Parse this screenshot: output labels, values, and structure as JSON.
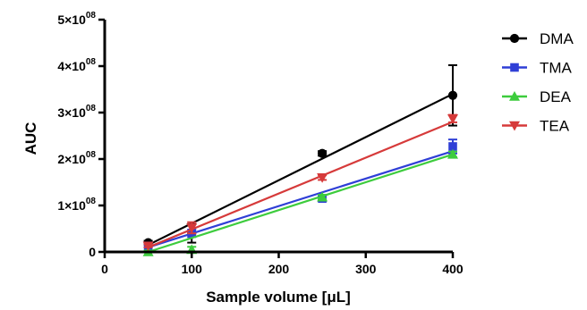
{
  "chart_data": {
    "type": "scatter",
    "title": "",
    "xlabel": "Sample volume [μL]",
    "ylabel": "AUC",
    "xlim": [
      0,
      400
    ],
    "ylim": [
      0,
      500000000
    ],
    "x_ticks": [
      0,
      100,
      200,
      300,
      400
    ],
    "x_tick_labels": [
      "0",
      "100",
      "200",
      "300",
      "400"
    ],
    "y_ticks": [
      0,
      100000000,
      200000000,
      300000000,
      400000000,
      500000000
    ],
    "y_tick_labels": [
      {
        "mantissa": "0",
        "exp": ""
      },
      {
        "mantissa": "1×10",
        "exp": "08"
      },
      {
        "mantissa": "2×10",
        "exp": "08"
      },
      {
        "mantissa": "3×10",
        "exp": "08"
      },
      {
        "mantissa": "4×10",
        "exp": "08"
      },
      {
        "mantissa": "5×10",
        "exp": "08"
      }
    ],
    "grid": false,
    "legend_position": "right",
    "series": [
      {
        "name": "DMA",
        "color": "#000000",
        "marker": "circle",
        "points": [
          {
            "x": 50,
            "y": 20000000,
            "err": 4000000
          },
          {
            "x": 100,
            "y": 40000000,
            "err": 20000000
          },
          {
            "x": 250,
            "y": 212000000,
            "err": 5000000
          },
          {
            "x": 400,
            "y": 337000000,
            "err": 65000000
          }
        ],
        "fit": [
          [
            50,
            15000000
          ],
          [
            400,
            340000000
          ]
        ]
      },
      {
        "name": "TMA",
        "color": "#2f3fd6",
        "marker": "square",
        "points": [
          {
            "x": 50,
            "y": 13000000,
            "err": 3000000
          },
          {
            "x": 100,
            "y": 40000000,
            "err": 8000000
          },
          {
            "x": 250,
            "y": 115000000,
            "err": 5000000
          },
          {
            "x": 400,
            "y": 227000000,
            "err": 15000000
          }
        ],
        "fit": [
          [
            50,
            10000000
          ],
          [
            400,
            217000000
          ]
        ]
      },
      {
        "name": "DEA",
        "color": "#3dcc3d",
        "marker": "triangle-up",
        "points": [
          {
            "x": 50,
            "y": 0,
            "err": 3000000
          },
          {
            "x": 100,
            "y": 5000000,
            "err": 6000000
          },
          {
            "x": 250,
            "y": 118000000,
            "err": 5000000
          },
          {
            "x": 400,
            "y": 210000000,
            "err": 6000000
          }
        ],
        "fit": [
          [
            50,
            0
          ],
          [
            400,
            210000000
          ]
        ]
      },
      {
        "name": "TEA",
        "color": "#d63a3a",
        "marker": "triangle-down",
        "points": [
          {
            "x": 50,
            "y": 13000000,
            "err": 3000000
          },
          {
            "x": 100,
            "y": 52000000,
            "err": 12000000
          },
          {
            "x": 250,
            "y": 160000000,
            "err": 5000000
          },
          {
            "x": 400,
            "y": 287000000,
            "err": 8000000
          }
        ],
        "fit": [
          [
            50,
            10000000
          ],
          [
            400,
            280000000
          ]
        ]
      }
    ]
  }
}
